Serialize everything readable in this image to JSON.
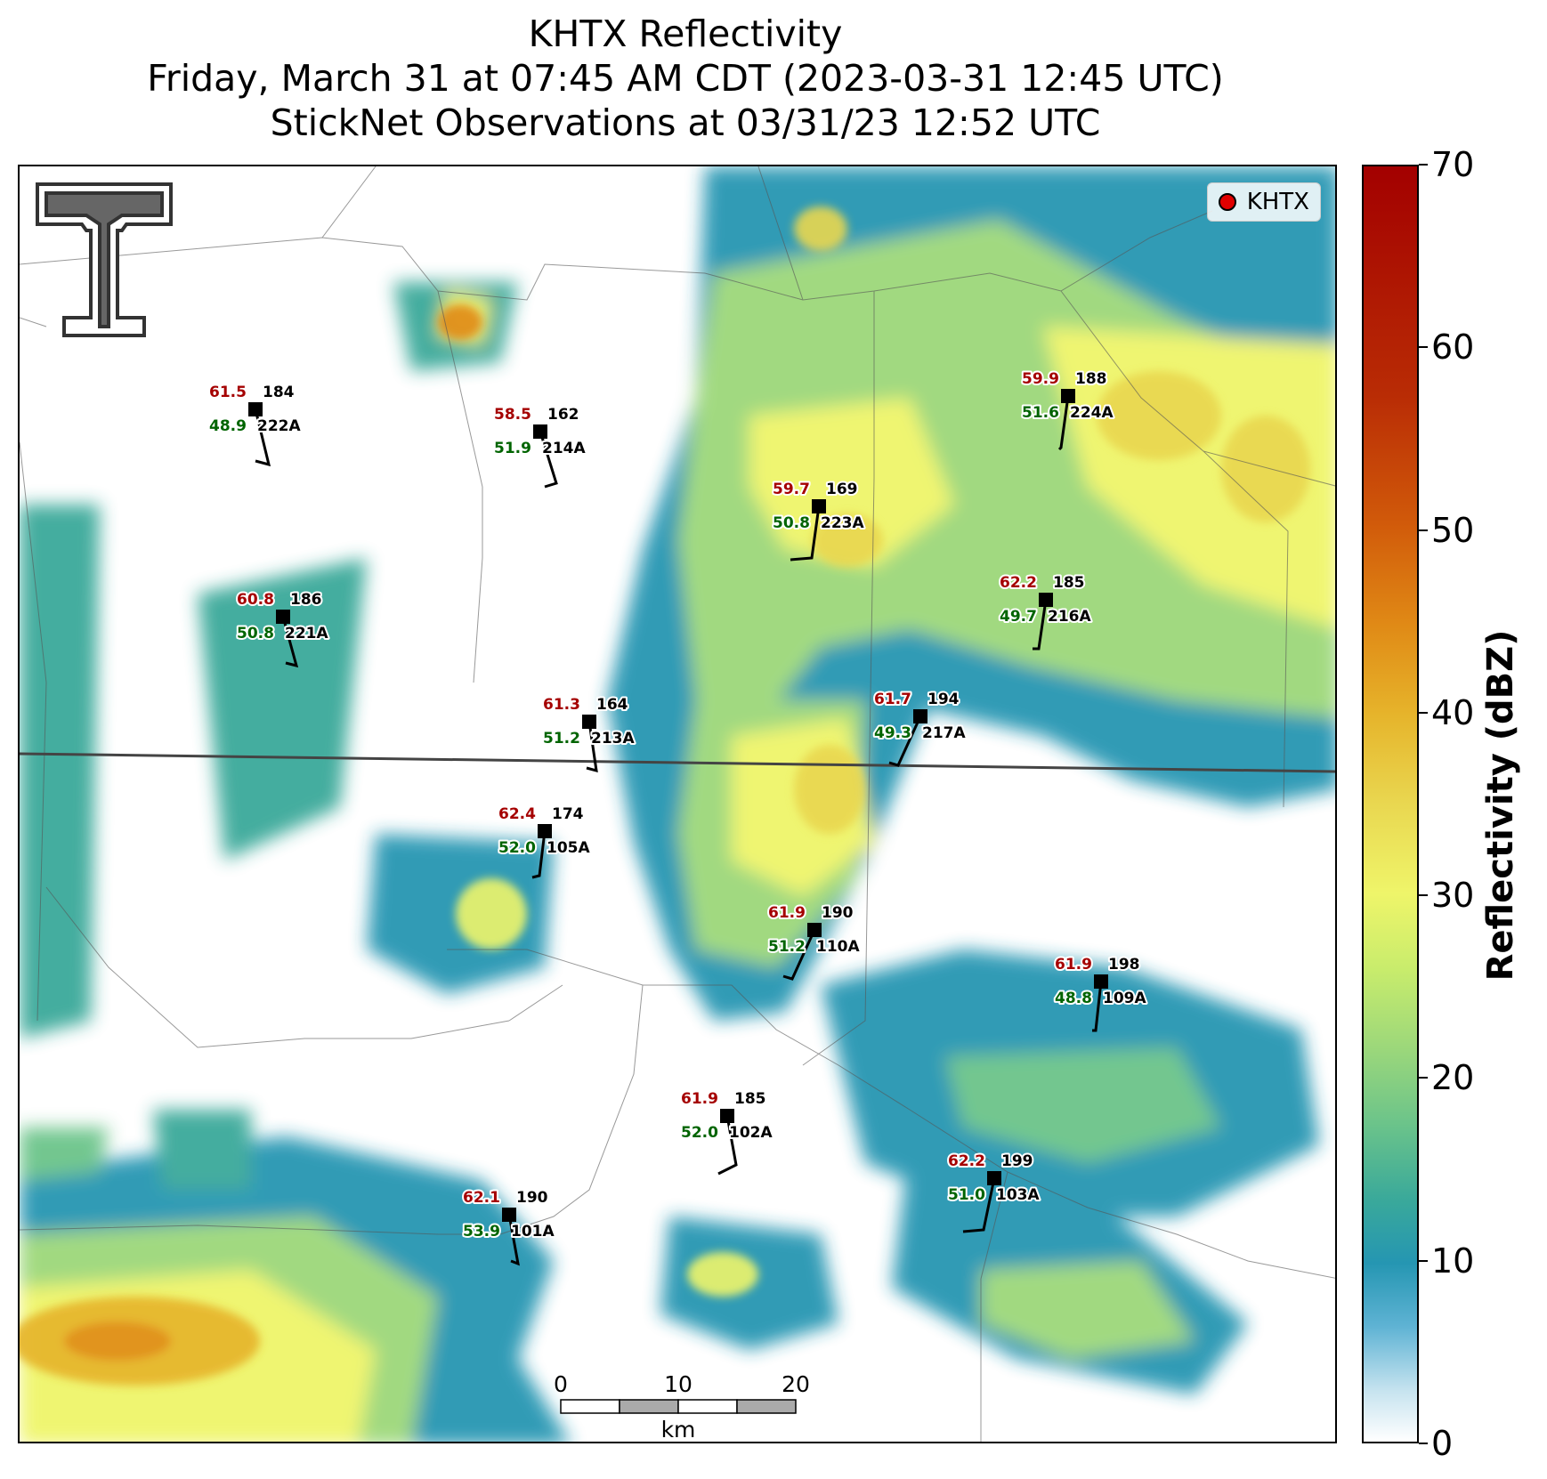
{
  "header": {
    "title_line1": "KHTX Reflectivity",
    "title_line2": "Friday, March 31 at 07:45 AM CDT (2023-03-31 12:45 UTC)",
    "title_line3": "StickNet Observations at 03/31/23 12:52 UTC"
  },
  "legend": {
    "label": "KHTX",
    "marker_color": "#e00000"
  },
  "colorbar": {
    "label": "Reflectivity (dBZ)",
    "ticks": [
      "0",
      "10",
      "20",
      "30",
      "40",
      "50",
      "60",
      "70"
    ],
    "range": [
      0,
      70
    ]
  },
  "scalebar": {
    "ticks": [
      "0",
      "10",
      "20"
    ],
    "unit": "km"
  },
  "logo": {
    "icon": "double-t-logo-icon"
  },
  "stations": [
    {
      "id": "222A",
      "temp": "61.5",
      "dew": "48.9",
      "dir": "184"
    },
    {
      "id": "214A",
      "temp": "58.5",
      "dew": "51.9",
      "dir": "162"
    },
    {
      "id": "223A",
      "temp": "59.7",
      "dew": "50.8",
      "dir": "169"
    },
    {
      "id": "224A",
      "temp": "59.9",
      "dew": "51.6",
      "dir": "188"
    },
    {
      "id": "221A",
      "temp": "60.8",
      "dew": "50.8",
      "dir": "186"
    },
    {
      "id": "216A",
      "temp": "62.2",
      "dew": "49.7",
      "dir": "185"
    },
    {
      "id": "213A",
      "temp": "61.3",
      "dew": "51.2",
      "dir": "164"
    },
    {
      "id": "217A",
      "temp": "61.7",
      "dew": "49.3",
      "dir": "194"
    },
    {
      "id": "105A",
      "temp": "62.4",
      "dew": "52.0",
      "dir": "174"
    },
    {
      "id": "110A",
      "temp": "61.9",
      "dew": "51.2",
      "dir": "190"
    },
    {
      "id": "109A",
      "temp": "61.9",
      "dew": "48.8",
      "dir": "198"
    },
    {
      "id": "102A",
      "temp": "61.9",
      "dew": "52.0",
      "dir": "185"
    },
    {
      "id": "103A",
      "temp": "62.2",
      "dew": "51.0",
      "dir": "199"
    },
    {
      "id": "101A",
      "temp": "62.1",
      "dew": "53.9",
      "dir": "190"
    }
  ],
  "colors": {
    "temperature": "#a50000",
    "dewpoint": "#006400",
    "reflectivity_low": "#2596b2",
    "reflectivity_mid": "#eff56a",
    "reflectivity_high": "#a30000"
  }
}
